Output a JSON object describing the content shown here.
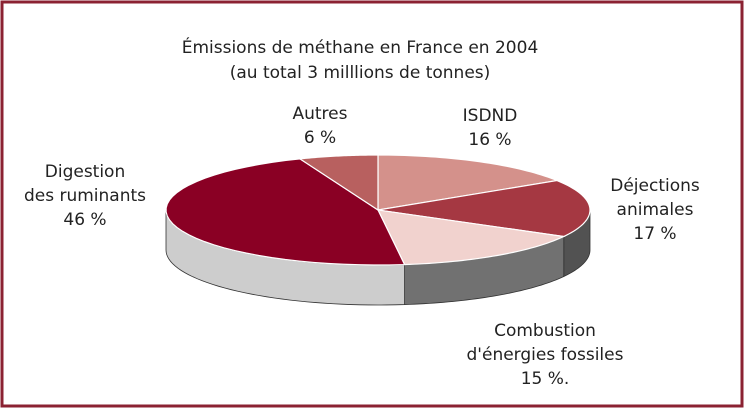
{
  "chart_data": {
    "type": "pie3d",
    "title": "Émissions de méthane en France en 2004",
    "subtitle": "(au total 3 milllions de tonnes)",
    "categories": [
      [
        "ISDND"
      ],
      [
        "Déjections",
        "animales"
      ],
      [
        "Combustion",
        "d'énergies fossiles"
      ],
      [
        "Digestion",
        "des ruminants"
      ],
      [
        "Autres"
      ]
    ],
    "values": [
      16,
      17,
      15,
      46,
      6
    ],
    "value_labels": [
      "16 %",
      "17 %",
      "15 %.",
      "46 %",
      "6 %"
    ],
    "colors": [
      "#d4918b",
      "#a53842",
      "#f1d2ce",
      "#8a0024",
      "#b8605f"
    ]
  }
}
